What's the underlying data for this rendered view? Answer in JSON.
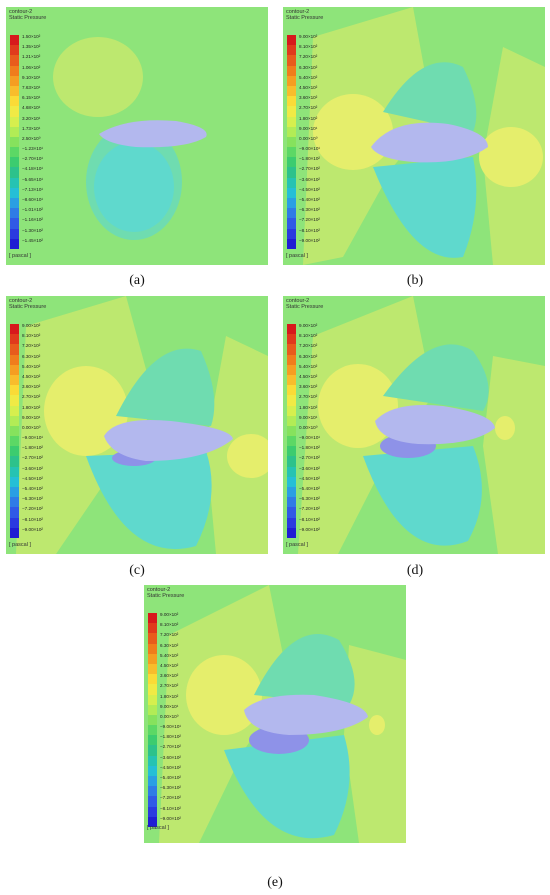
{
  "panels": [
    {
      "id": "a",
      "title": "contour-2",
      "subtitle": "Static Pressure",
      "unit": "[ pascal ]",
      "caption": "(a)",
      "legend": [
        "1.50×10²",
        "1.35×10²",
        "1.21×10²",
        "1.06×10²",
        "9.10×10¹",
        "7.63×10¹",
        "6.15×10¹",
        "4.68×10¹",
        "3.20×10¹",
        "1.73×10¹",
        "2.50×10⁰",
        "−1.23×10¹",
        "−2.70×10¹",
        "−4.18×10¹",
        "−5.65×10¹",
        "−7.13×10¹",
        "−8.60×10¹",
        "−1.01×10²",
        "−1.16×10²",
        "−1.30×10²",
        "−1.45×10²"
      ]
    },
    {
      "id": "b",
      "title": "contour-2",
      "subtitle": "Static Pressure",
      "unit": "[ pascal ]",
      "caption": "(b)",
      "legend": [
        "9.00×10²",
        "8.10×10²",
        "7.20×10²",
        "6.30×10²",
        "5.40×10²",
        "4.50×10²",
        "3.60×10²",
        "2.70×10²",
        "1.80×10²",
        "9.00×10¹",
        "0.00×10⁰",
        "−9.00×10¹",
        "−1.80×10²",
        "−2.70×10²",
        "−3.60×10²",
        "−4.50×10²",
        "−5.40×10²",
        "−6.30×10²",
        "−7.20×10²",
        "−8.10×10²",
        "−9.00×10²"
      ]
    },
    {
      "id": "c",
      "title": "contour-2",
      "subtitle": "Static Pressure",
      "unit": "[ pascal ]",
      "caption": "(c)",
      "legend": [
        "9.00×10²",
        "8.10×10²",
        "7.20×10²",
        "6.30×10²",
        "5.40×10²",
        "4.50×10²",
        "3.60×10²",
        "2.70×10²",
        "1.80×10²",
        "9.00×10¹",
        "0.00×10⁰",
        "−9.00×10¹",
        "−1.80×10²",
        "−2.70×10²",
        "−3.60×10²",
        "−4.50×10²",
        "−5.40×10²",
        "−6.30×10²",
        "−7.20×10²",
        "−8.10×10²",
        "−9.00×10²"
      ]
    },
    {
      "id": "d",
      "title": "contour-2",
      "subtitle": "Static Pressure",
      "unit": "[ pascal ]",
      "caption": "(d)",
      "legend": [
        "9.00×10²",
        "8.10×10²",
        "7.20×10²",
        "6.30×10²",
        "5.40×10²",
        "4.50×10²",
        "3.60×10²",
        "2.70×10²",
        "1.80×10²",
        "9.00×10¹",
        "0.00×10⁰",
        "−9.00×10¹",
        "−1.80×10²",
        "−2.70×10²",
        "−3.60×10²",
        "−4.50×10²",
        "−5.40×10²",
        "−6.30×10²",
        "−7.20×10²",
        "−8.10×10²",
        "−9.00×10²"
      ]
    },
    {
      "id": "e",
      "title": "contour-2",
      "subtitle": "Static Pressure",
      "unit": "[ pascal ]",
      "caption": "(e)",
      "legend": [
        "9.00×10²",
        "8.10×10²",
        "7.20×10²",
        "6.30×10²",
        "5.40×10²",
        "4.50×10²",
        "3.60×10²",
        "2.70×10²",
        "1.80×10²",
        "9.00×10¹",
        "0.00×10⁰",
        "−9.00×10¹",
        "−1.80×10²",
        "−2.70×10²",
        "−3.60×10²",
        "−4.50×10²",
        "−5.40×10²",
        "−6.30×10²",
        "−7.20×10²",
        "−8.10×10²",
        "−9.00×10²"
      ]
    }
  ],
  "colorbar": [
    "#d7191c",
    "#e03a1c",
    "#e85c1c",
    "#f07d1c",
    "#f59e22",
    "#f8bd2c",
    "#fadb37",
    "#f0ea45",
    "#d6ef4e",
    "#b2ec56",
    "#86e25d",
    "#5cd865",
    "#3ccc6f",
    "#2dc28b",
    "#26c3b2",
    "#25bfd6",
    "#2a9fe3",
    "#2f7ce6",
    "#305ae6",
    "#2a3ae0",
    "#1f1dd4"
  ],
  "field_colors": {
    "background": "#8ee47a",
    "high_far": "#bde86f",
    "high_near": "#e5ee6c",
    "high_core": "#f1ef73",
    "low_far": "#6fdcb0",
    "low_near": "#5fd9cd",
    "low_core": "#8e92e8",
    "airfoil": "#b3b8ee"
  }
}
